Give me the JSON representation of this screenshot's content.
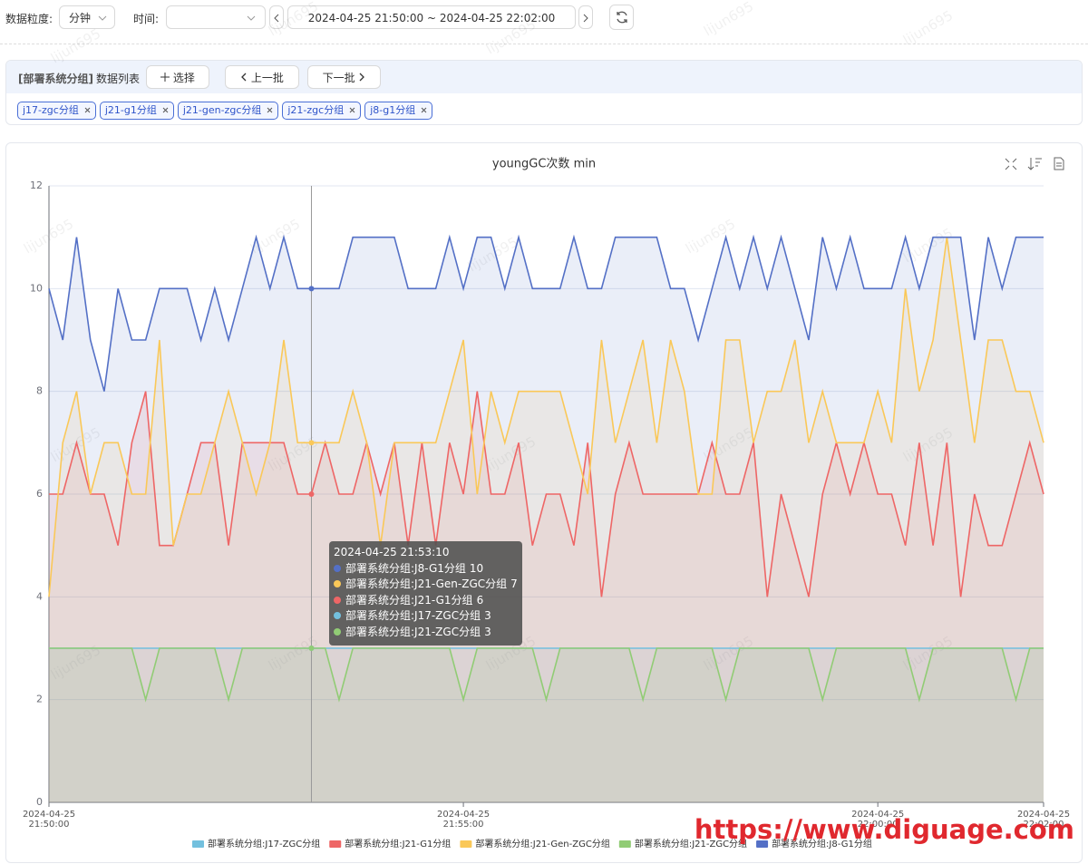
{
  "toolbar": {
    "granularity_label": "数据粒度:",
    "granularity_value": "分钟",
    "time_label": "时间:",
    "range_start": "2024-04-25 21:50:00",
    "range_sep": "~",
    "range_end": "2024-04-25 22:02:00"
  },
  "panel": {
    "group": "[部署系统分组]",
    "list_label": "数据列表",
    "select": "选择",
    "prev": "上一批",
    "next": "下一批",
    "tags": [
      "j17-zgc分组",
      "j21-g1分组",
      "j21-gen-zgc分组",
      "j21-zgc分组",
      "j8-g1分组"
    ]
  },
  "watermark": "lijun695",
  "site_watermark": "https://www.diguage.com",
  "chart_data": {
    "type": "line",
    "title": "youngGC次数 min",
    "area": true,
    "grid": true,
    "legend": "bottom",
    "x": [
      "2024-04-25 21:50:00",
      "2024-04-25 21:50:10",
      "2024-04-25 21:50:20",
      "2024-04-25 21:50:30",
      "2024-04-25 21:50:40",
      "2024-04-25 21:50:50",
      "2024-04-25 21:51:00",
      "2024-04-25 21:51:10",
      "2024-04-25 21:51:20",
      "2024-04-25 21:51:30",
      "2024-04-25 21:51:40",
      "2024-04-25 21:51:50",
      "2024-04-25 21:52:00",
      "2024-04-25 21:52:10",
      "2024-04-25 21:52:20",
      "2024-04-25 21:52:30",
      "2024-04-25 21:52:40",
      "2024-04-25 21:52:50",
      "2024-04-25 21:53:00",
      "2024-04-25 21:53:10",
      "2024-04-25 21:53:20",
      "2024-04-25 21:53:30",
      "2024-04-25 21:53:40",
      "2024-04-25 21:53:50",
      "2024-04-25 21:54:00",
      "2024-04-25 21:54:10",
      "2024-04-25 21:54:20",
      "2024-04-25 21:54:30",
      "2024-04-25 21:54:40",
      "2024-04-25 21:54:50",
      "2024-04-25 21:55:00",
      "2024-04-25 21:55:10",
      "2024-04-25 21:55:20",
      "2024-04-25 21:55:30",
      "2024-04-25 21:55:40",
      "2024-04-25 21:55:50",
      "2024-04-25 21:56:00",
      "2024-04-25 21:56:10",
      "2024-04-25 21:56:20",
      "2024-04-25 21:56:30",
      "2024-04-25 21:56:40",
      "2024-04-25 21:56:50",
      "2024-04-25 21:57:00",
      "2024-04-25 21:57:10",
      "2024-04-25 21:57:20",
      "2024-04-25 21:57:30",
      "2024-04-25 21:57:40",
      "2024-04-25 21:57:50",
      "2024-04-25 21:58:00",
      "2024-04-25 21:58:10",
      "2024-04-25 21:58:20",
      "2024-04-25 21:58:30",
      "2024-04-25 21:58:40",
      "2024-04-25 21:58:50",
      "2024-04-25 21:59:00",
      "2024-04-25 21:59:10",
      "2024-04-25 21:59:20",
      "2024-04-25 21:59:30",
      "2024-04-25 21:59:40",
      "2024-04-25 21:59:50",
      "2024-04-25 22:00:00",
      "2024-04-25 22:00:10",
      "2024-04-25 22:00:20",
      "2024-04-25 22:00:30",
      "2024-04-25 22:00:40",
      "2024-04-25 22:00:50",
      "2024-04-25 22:01:00",
      "2024-04-25 22:01:10",
      "2024-04-25 22:01:20",
      "2024-04-25 22:01:30",
      "2024-04-25 22:01:40",
      "2024-04-25 22:01:50",
      "2024-04-25 22:02:00"
    ],
    "xlim": [
      "2024-04-25 21:50:00",
      "2024-04-25 22:02:00"
    ],
    "xticks": [
      {
        "value": "2024-04-25 21:50:00",
        "label": "2024-04-25\n21:50:00"
      },
      {
        "value": "2024-04-25 21:55:00",
        "label": "2024-04-25\n21:55:00"
      },
      {
        "value": "2024-04-25 22:00:00",
        "label": "2024-04-25\n22:00:00"
      },
      {
        "value": "2024-04-25 22:02:00",
        "label": "2024-04-25\n22:02:00"
      }
    ],
    "ylim": [
      0,
      12
    ],
    "yticks": [
      0,
      2,
      4,
      6,
      8,
      10,
      12
    ],
    "tooltip_index": 19,
    "tooltip_order": [
      4,
      2,
      1,
      0,
      3
    ],
    "series": [
      {
        "name": "部署系统分组:J17-ZGC分组",
        "color": "#73c0de",
        "values": [
          3,
          3,
          3,
          3,
          3,
          3,
          3,
          3,
          3,
          3,
          3,
          3,
          3,
          3,
          3,
          3,
          3,
          3,
          3,
          3,
          3,
          3,
          3,
          3,
          3,
          3,
          3,
          3,
          3,
          3,
          3,
          3,
          3,
          3,
          3,
          3,
          3,
          3,
          3,
          3,
          3,
          3,
          3,
          3,
          3,
          3,
          3,
          3,
          3,
          3,
          3,
          3,
          3,
          3,
          3,
          3,
          3,
          3,
          3,
          3,
          3,
          3,
          3,
          3,
          3,
          3,
          3,
          3,
          3,
          3,
          3,
          3,
          3
        ]
      },
      {
        "name": "部署系统分组:J21-G1分组",
        "color": "#ee6666",
        "values": [
          6,
          6,
          7,
          6,
          6,
          5,
          7,
          8,
          5,
          5,
          6,
          7,
          7,
          5,
          7,
          7,
          7,
          7,
          6,
          6,
          7,
          6,
          6,
          7,
          6,
          7,
          5,
          7,
          5,
          7,
          6,
          8,
          6,
          6,
          7,
          5,
          6,
          6,
          5,
          7,
          4,
          6,
          7,
          6,
          6,
          6,
          6,
          6,
          7,
          6,
          6,
          7,
          4,
          6,
          5,
          4,
          6,
          7,
          6,
          7,
          6,
          6,
          5,
          7,
          5,
          7,
          4,
          6,
          5,
          5,
          6,
          7,
          6
        ]
      },
      {
        "name": "部署系统分组:J21-Gen-ZGC分组",
        "color": "#fac858",
        "values": [
          4,
          7,
          8,
          6,
          7,
          7,
          6,
          6,
          9,
          5,
          6,
          6,
          7,
          8,
          7,
          6,
          7,
          9,
          7,
          7,
          7,
          7,
          8,
          7,
          5,
          7,
          7,
          7,
          7,
          8,
          9,
          6,
          8,
          7,
          8,
          8,
          8,
          8,
          7,
          6,
          9,
          7,
          8,
          9,
          7,
          9,
          8,
          6,
          6,
          9,
          9,
          7,
          8,
          8,
          9,
          7,
          8,
          7,
          7,
          7,
          8,
          7,
          10,
          8,
          9,
          11,
          9,
          7,
          9,
          9,
          8,
          8,
          7
        ]
      },
      {
        "name": "部署系统分组:J21-ZGC分组",
        "color": "#91cc75",
        "values": [
          3,
          3,
          3,
          3,
          3,
          3,
          3,
          2,
          3,
          3,
          3,
          3,
          3,
          2,
          3,
          3,
          3,
          3,
          3,
          3,
          3,
          2,
          3,
          3,
          3,
          3,
          3,
          3,
          3,
          3,
          2,
          3,
          3,
          3,
          3,
          3,
          2,
          3,
          3,
          3,
          3,
          3,
          3,
          2,
          3,
          3,
          3,
          3,
          3,
          2,
          3,
          3,
          3,
          3,
          3,
          3,
          2,
          3,
          3,
          3,
          3,
          3,
          3,
          2,
          3,
          3,
          3,
          3,
          3,
          3,
          2,
          3,
          3
        ]
      },
      {
        "name": "部署系统分组:J8-G1分组",
        "color": "#5470c6",
        "values": [
          10,
          9,
          11,
          9,
          8,
          10,
          9,
          9,
          10,
          10,
          10,
          9,
          10,
          9,
          10,
          11,
          10,
          11,
          10,
          10,
          10,
          10,
          11,
          11,
          11,
          11,
          10,
          10,
          10,
          11,
          10,
          11,
          11,
          10,
          11,
          10,
          10,
          10,
          11,
          10,
          10,
          11,
          11,
          11,
          11,
          10,
          10,
          9,
          10,
          11,
          10,
          11,
          10,
          11,
          10,
          9,
          11,
          10,
          11,
          10,
          10,
          10,
          11,
          10,
          11,
          11,
          11,
          9,
          11,
          10,
          11,
          11,
          11
        ]
      }
    ]
  }
}
